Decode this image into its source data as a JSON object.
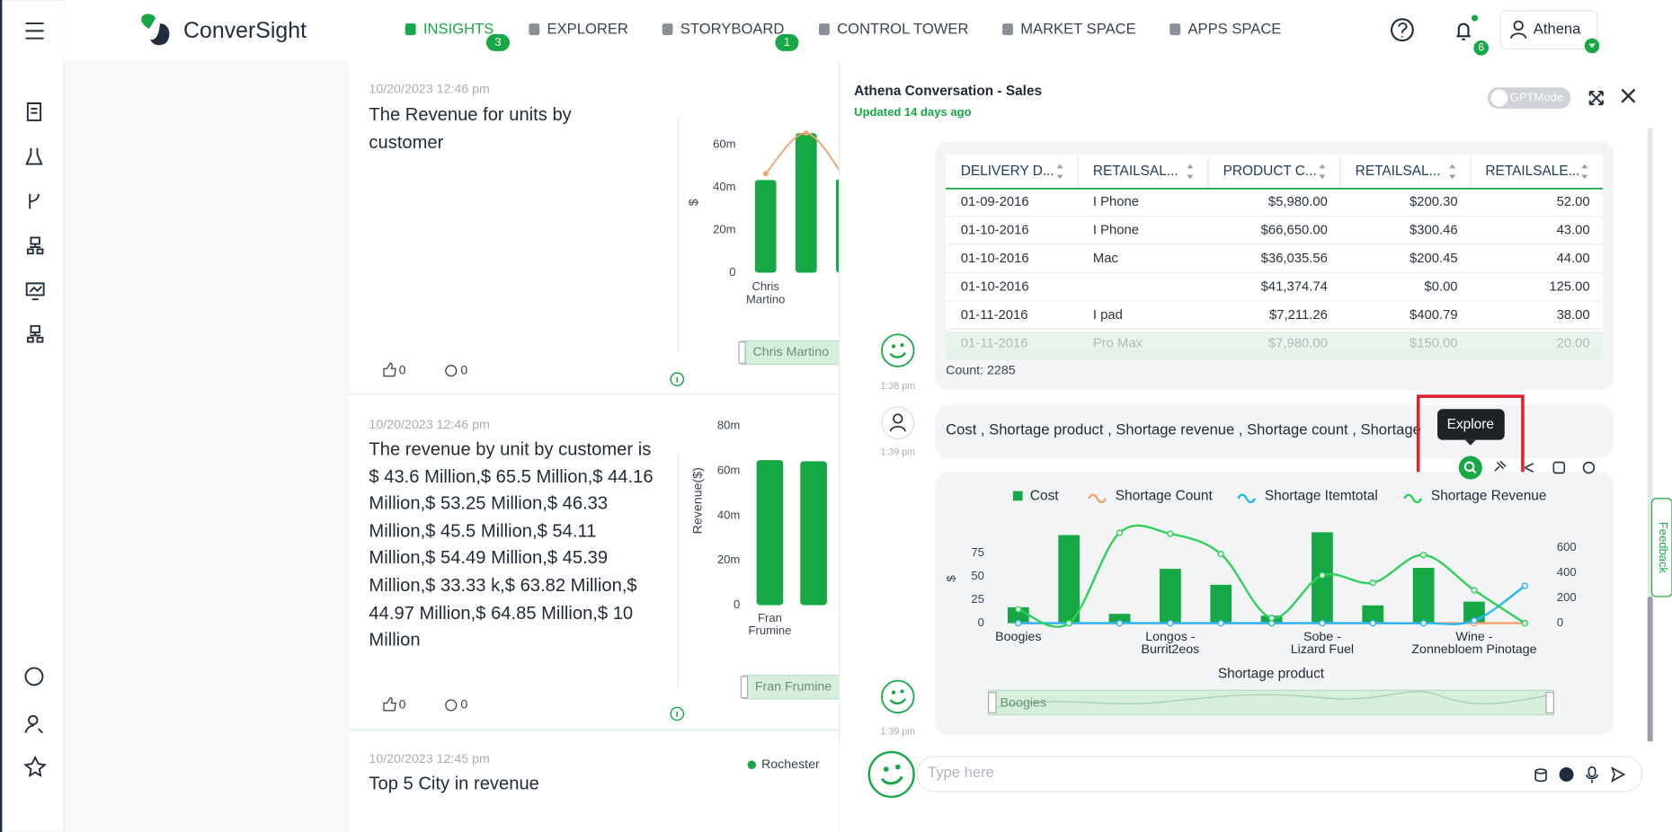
{
  "header": {
    "logo": "ConverSight",
    "tabs": [
      {
        "label": "INSIGHTS",
        "badge": "3"
      },
      {
        "label": "EXPLORER"
      },
      {
        "label": "STORYBOARD",
        "badge": "1"
      },
      {
        "label": "CONTROL TOWER"
      },
      {
        "label": "MARKET SPACE"
      },
      {
        "label": "APPS SPACE"
      }
    ],
    "notification_count": "6",
    "user": "Athena"
  },
  "feed": [
    {
      "date": "10/20/2023 12:46 pm",
      "title": "The Revenue for units by customer",
      "likes": "0",
      "comments": "0",
      "chart_data": {
        "type": "bar",
        "y_label": "$",
        "ylim": [
          0,
          68000000
        ],
        "yticks": [
          {
            "value": 0,
            "label": "0"
          },
          {
            "value": 20000000,
            "label": "20m"
          },
          {
            "value": 40000000,
            "label": "40m"
          },
          {
            "value": 60000000,
            "label": "60m"
          }
        ],
        "categories": [
          "Chris Martino",
          null,
          null
        ],
        "series": [
          {
            "type": "bar",
            "color": "#16a844",
            "values": [
              43500000,
              65500000,
              44000000
            ]
          },
          {
            "type": "line",
            "color": "#f4a26b",
            "values": [
              46500000,
              65500000,
              43000000
            ]
          }
        ],
        "slider": "Chris Martino"
      }
    },
    {
      "date": "10/20/2023 12:46 pm",
      "title": "The revenue by unit by customer is $ 43.6 Million,$ 65.5 Million,$ 44.16 Million,$ 53.25 Million,$ 46.33 Million,$ 45.5 Million,$ 54.11 Million,$ 54.49 Million,$ 45.39 Million,$ 33.33 k,$ 63.82 Million,$ 44.97 Million,$ 64.85 Million,$ 10 Million",
      "likes": "0",
      "comments": "0",
      "chart_data": {
        "type": "bar",
        "y_label": "Revenue($)",
        "ylim": [
          0,
          80000000
        ],
        "yticks": [
          {
            "value": 0,
            "label": "0"
          },
          {
            "value": 20000000,
            "label": "20m"
          },
          {
            "value": 40000000,
            "label": "40m"
          },
          {
            "value": 60000000,
            "label": "60m"
          },
          {
            "value": 80000000,
            "label": "80m"
          }
        ],
        "categories": [
          "Fran Frumine",
          null
        ],
        "series": [
          {
            "type": "bar",
            "color": "#16a844",
            "values": [
              64800000,
              64300000
            ]
          }
        ],
        "slider": "Fran Frumine"
      }
    },
    {
      "date": "10/20/2023 12:45 pm",
      "title": "Top 5 City in revenue",
      "legend": "Rochester"
    }
  ],
  "panel": {
    "title": "Athena Conversation - Sales",
    "updated": "Updated 14 days ago",
    "toggle": "GPTMode",
    "table": {
      "headers": [
        "DELIVERY D...",
        "RETAILSAL...",
        "PRODUCT C...",
        "RETAILSAL...",
        "RETAILSALE..."
      ],
      "rows": [
        [
          "01-09-2016",
          "I Phone",
          "$5,980.00",
          "$200.30",
          "52.00"
        ],
        [
          "01-10-2016",
          "I Phone",
          "$66,650.00",
          "$300.46",
          "43.00"
        ],
        [
          "01-10-2016",
          "Mac",
          "$36,035.56",
          "$200.45",
          "44.00"
        ],
        [
          "01-10-2016",
          "",
          "$41,374.74",
          "$0.00",
          "125.00"
        ],
        [
          "01-11-2016",
          "I pad",
          "$7,211.26",
          "$400.79",
          "38.00"
        ],
        [
          "01-11-2016",
          "Pro Max",
          "$7,980.00",
          "$150.00",
          "20.00"
        ]
      ],
      "count": "Count: 2285",
      "time": "1:38 pm"
    },
    "query": {
      "text": "Cost , Shortage product , Shortage revenue , Shortage count , Shortage",
      "time": "1:39 pm"
    },
    "tooltip": "Explore",
    "chart": {
      "time": "1:39 pm",
      "chart_data": {
        "type": "combo",
        "y_label": "$",
        "x_label": "Shortage product",
        "ylim": [
          0,
          100
        ],
        "yticks": [
          0,
          25,
          50,
          75
        ],
        "y2lim": [
          0,
          744
        ],
        "y2ticks": [
          0,
          200,
          400,
          600
        ],
        "categories": [
          "Boogies",
          null,
          null,
          "Longos - Burrit2eos",
          null,
          null,
          "Sobe - Lizard Fuel",
          null,
          null,
          "Wine - Zonnebloem Pinotage",
          null
        ],
        "series": [
          {
            "name": "Cost",
            "type": "bar",
            "color": "#16a844",
            "values": [
              17,
              94,
              10,
              58,
              41,
              8,
              97,
              19,
              59,
              23,
              0
            ]
          },
          {
            "name": "Shortage Count",
            "type": "line",
            "axis": "y2",
            "color": "#f4a26b",
            "values": [
              0,
              0,
              0,
              0,
              0,
              0,
              0,
              0,
              0,
              0,
              0
            ]
          },
          {
            "name": "Shortage Itemtotal",
            "type": "line",
            "axis": "y2",
            "color": "#29b6f6",
            "values": [
              0,
              0,
              0,
              0,
              0,
              0,
              0,
              0,
              0,
              20,
              296
            ]
          },
          {
            "name": "Shortage Revenue",
            "type": "line",
            "axis": "y2",
            "color": "#2ed158",
            "values": [
              110,
              0,
              718,
              710,
              549,
              42,
              380,
              321,
              541,
              262,
              0
            ]
          }
        ],
        "slider": "Boogies"
      }
    },
    "input_placeholder": "Type here",
    "feedback": "Feedback"
  }
}
